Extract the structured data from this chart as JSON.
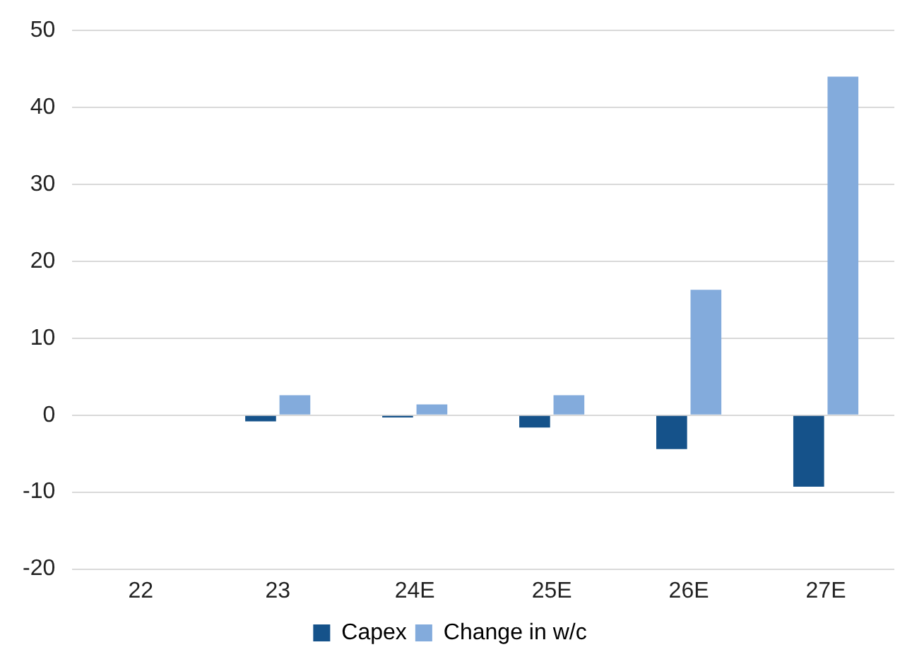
{
  "chart_data": {
    "type": "bar",
    "categories": [
      "22",
      "23",
      "24E",
      "25E",
      "26E",
      "27E"
    ],
    "series": [
      {
        "name": "Capex",
        "color": "#15528a",
        "values": [
          0,
          -0.8,
          -0.3,
          -1.6,
          -4.4,
          -9.3
        ]
      },
      {
        "name": "Change in w/c",
        "color": "#83abdc",
        "values": [
          0,
          2.6,
          1.4,
          2.6,
          16.3,
          44.0
        ]
      }
    ],
    "ylim": [
      -20,
      50
    ],
    "yticks": [
      -20,
      -10,
      0,
      10,
      20,
      30,
      40,
      50
    ],
    "grid": "y",
    "legend": "bottom"
  }
}
